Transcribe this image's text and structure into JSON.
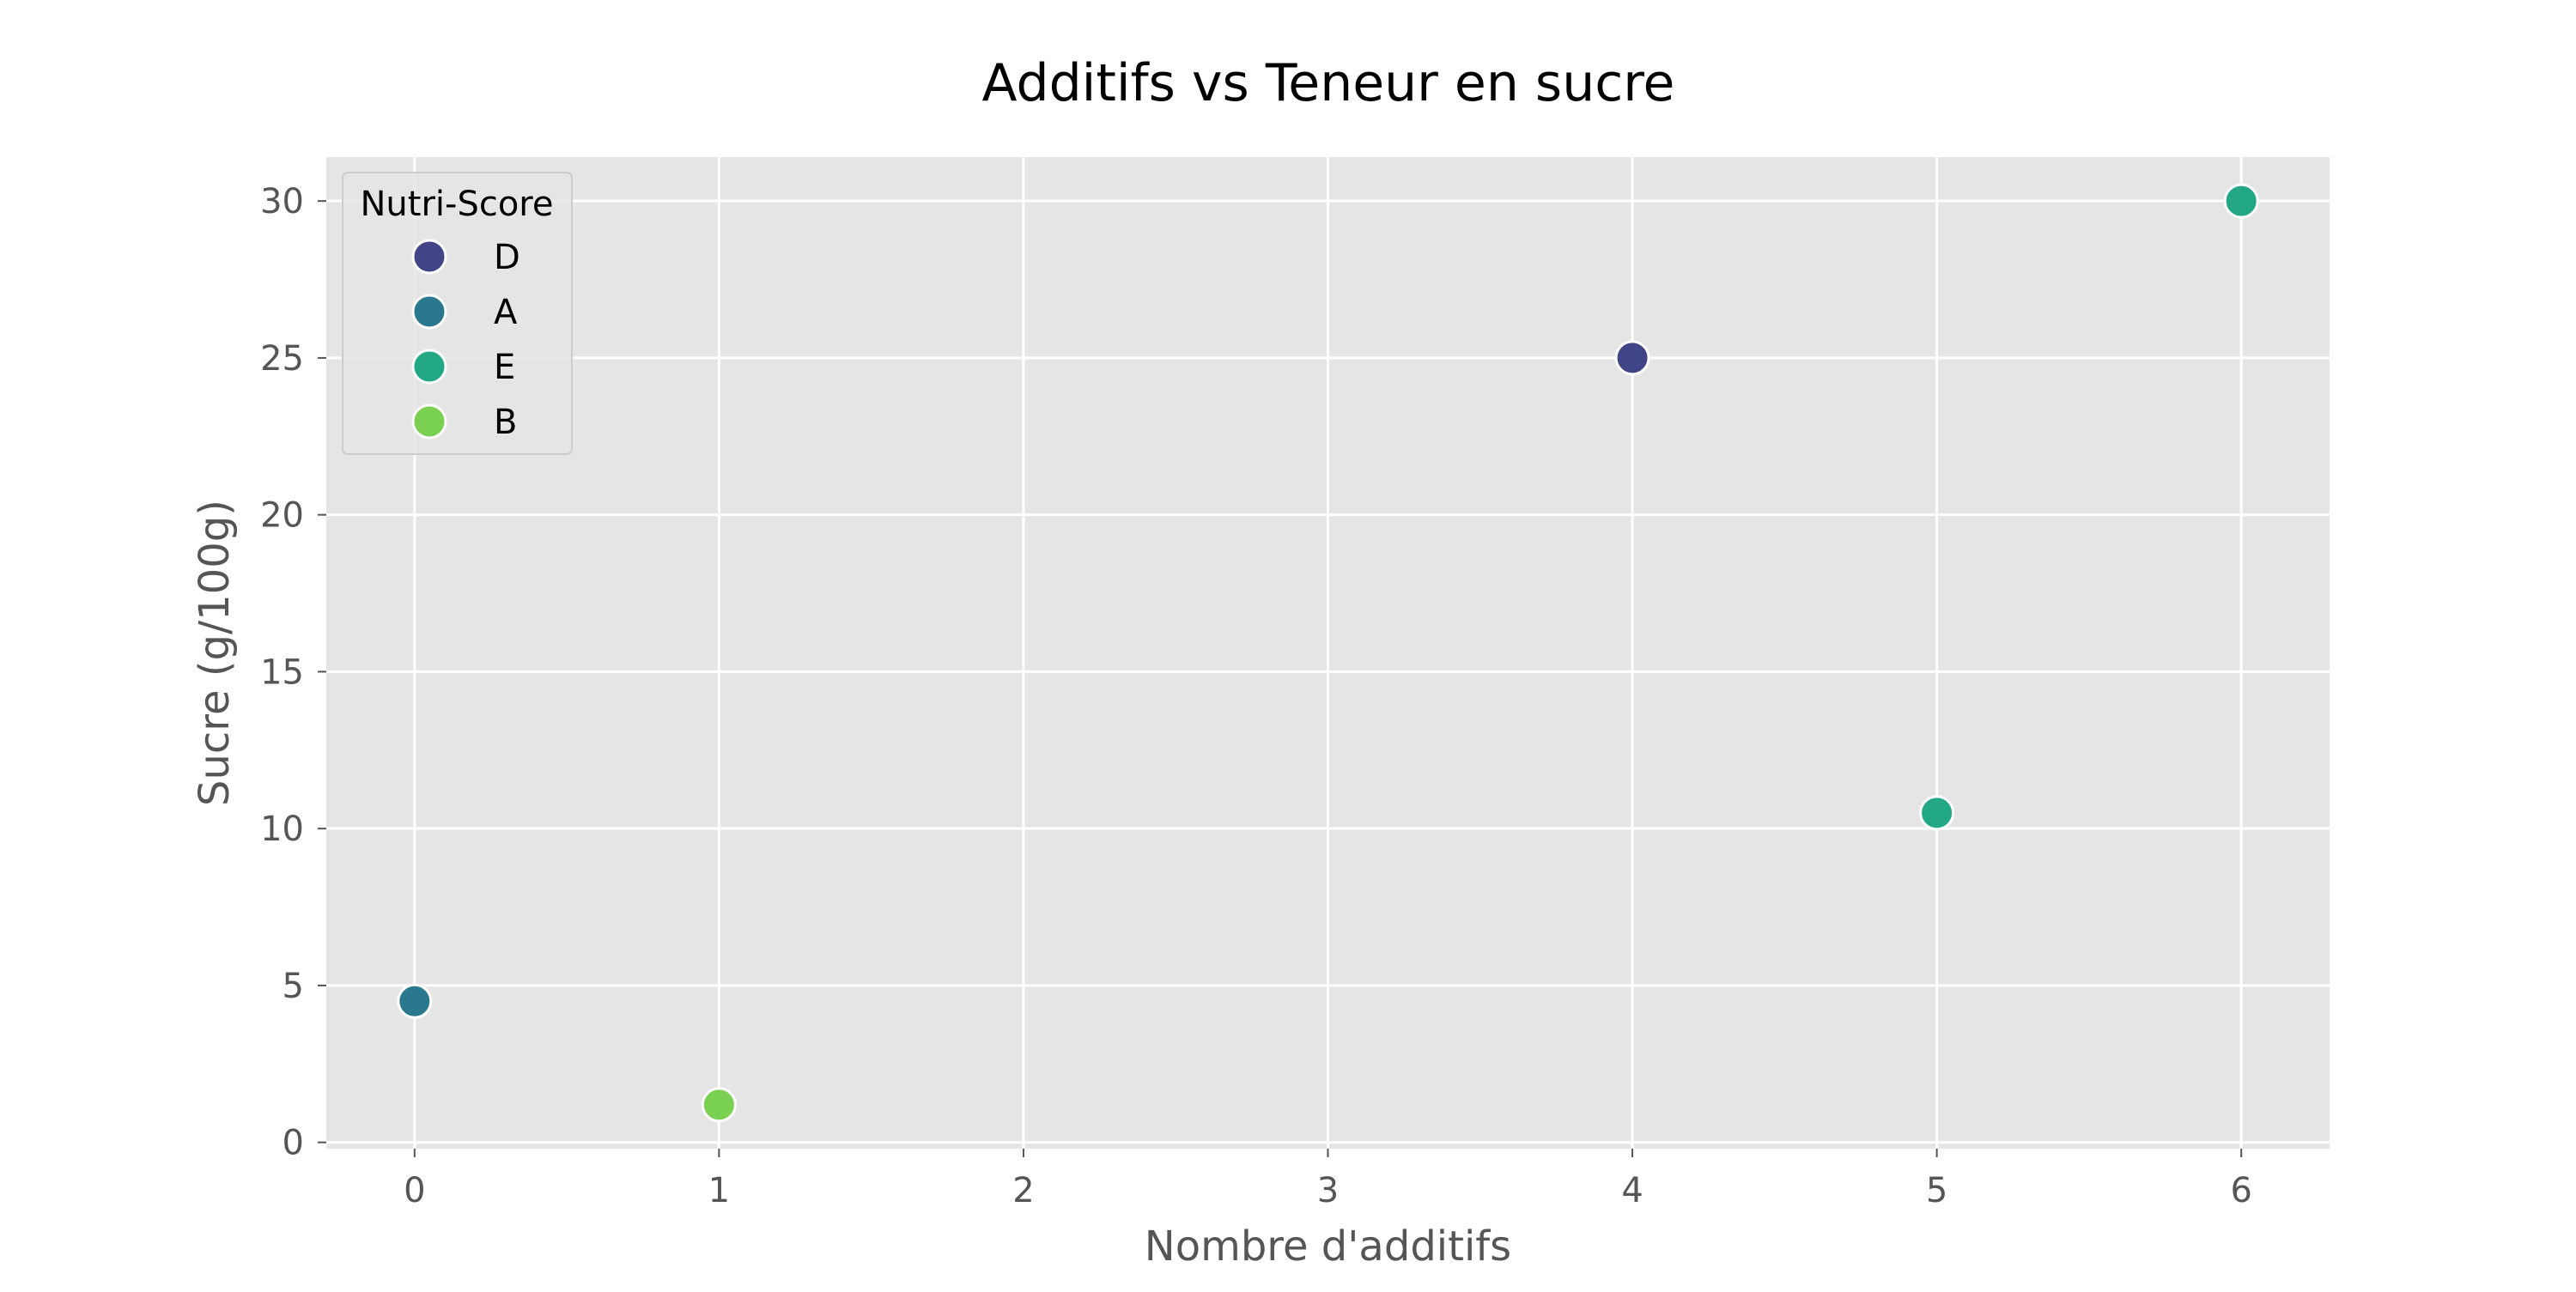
{
  "chart_data": {
    "type": "scatter",
    "title": "Additifs vs Teneur en sucre",
    "xlabel": "Nombre d'additifs",
    "ylabel": "Sucre (g/100g)",
    "xlim": [
      -0.29,
      6.29
    ],
    "ylim": [
      -0.2,
      31.4
    ],
    "xticks": [
      0,
      1,
      2,
      3,
      4,
      5,
      6
    ],
    "yticks": [
      0,
      5,
      10,
      15,
      20,
      25,
      30
    ],
    "xtick_labels": [
      "0",
      "1",
      "2",
      "3",
      "4",
      "5",
      "6"
    ],
    "ytick_labels": [
      "0",
      "5",
      "10",
      "15",
      "20",
      "25",
      "30"
    ],
    "grid": true,
    "legend": {
      "title": "Nutri-Score",
      "placement": "top-left"
    },
    "series": [
      {
        "name": "D",
        "color": "#414487",
        "points": [
          {
            "x": 4,
            "y": 25.0
          }
        ]
      },
      {
        "name": "A",
        "color": "#2a788e",
        "points": [
          {
            "x": 0,
            "y": 4.5
          }
        ]
      },
      {
        "name": "E",
        "color": "#22a884",
        "points": [
          {
            "x": 5,
            "y": 10.5
          },
          {
            "x": 6,
            "y": 30.0
          }
        ]
      },
      {
        "name": "B",
        "color": "#7ad151",
        "points": [
          {
            "x": 1,
            "y": 1.2
          }
        ]
      }
    ]
  }
}
